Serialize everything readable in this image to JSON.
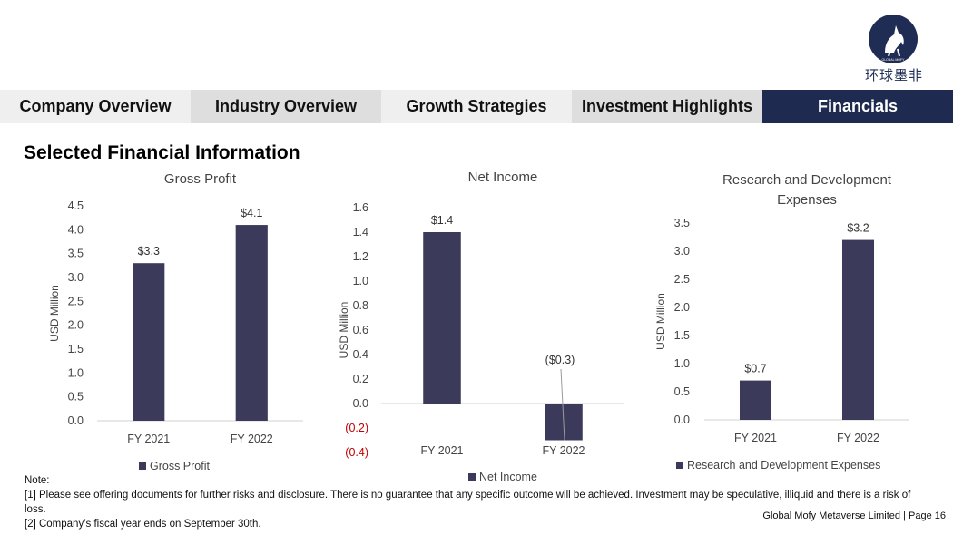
{
  "logo": {
    "chinese_text": "环球墨非",
    "small_text": "GLOBAL MOFY"
  },
  "nav": {
    "tabs": [
      {
        "label": "Company Overview",
        "state": "light"
      },
      {
        "label": "Industry Overview",
        "state": "grey"
      },
      {
        "label": "Growth Strategies",
        "state": "light"
      },
      {
        "label": "Investment Highlights",
        "state": "grey"
      },
      {
        "label": "Financials",
        "state": "active"
      }
    ]
  },
  "section_title": "Selected Financial Information",
  "colors": {
    "bar": "#3b3a5a",
    "navy": "#1e2a4f",
    "negative_tick": "#c00000"
  },
  "chart_data": [
    {
      "type": "bar",
      "title": [
        "Gross Profit"
      ],
      "ylabel": "USD Million",
      "categories": [
        "FY 2021",
        "FY 2022"
      ],
      "series": [
        {
          "name": "Gross Profit",
          "values": [
            3.3,
            4.1
          ]
        }
      ],
      "data_labels": [
        "$3.3",
        "$4.1"
      ],
      "yticks": [
        0.0,
        0.5,
        1.0,
        1.5,
        2.0,
        2.5,
        3.0,
        3.5,
        4.0,
        4.5
      ],
      "ytick_labels": [
        "0.0",
        "0.5",
        "1.0",
        "1.5",
        "2.0",
        "2.5",
        "3.0",
        "3.5",
        "4.0",
        "4.5"
      ],
      "ylim": [
        0,
        4.5
      ],
      "legend": "bottom"
    },
    {
      "type": "bar",
      "title": [
        "Net Income"
      ],
      "ylabel": "USD Million",
      "categories": [
        "FY 2021",
        "FY 2022"
      ],
      "series": [
        {
          "name": "Net Income",
          "values": [
            1.4,
            -0.3
          ]
        }
      ],
      "data_labels": [
        "$1.4",
        "($0.3)"
      ],
      "yticks": [
        -0.4,
        -0.2,
        0.0,
        0.2,
        0.4,
        0.6,
        0.8,
        1.0,
        1.2,
        1.4,
        1.6
      ],
      "ytick_labels": [
        "(0.4)",
        "(0.2)",
        "0.0",
        "0.2",
        "0.4",
        "0.6",
        "0.8",
        "1.0",
        "1.2",
        "1.4",
        "1.6"
      ],
      "ylim": [
        -0.4,
        1.6
      ],
      "legend": "bottom"
    },
    {
      "type": "bar",
      "title": [
        "Research and Development",
        "Expenses"
      ],
      "ylabel": "USD Million",
      "categories": [
        "FY 2021",
        "FY 2022"
      ],
      "series": [
        {
          "name": "Research and Development Expenses",
          "values": [
            0.7,
            3.2
          ]
        }
      ],
      "data_labels": [
        "$0.7",
        "$3.2"
      ],
      "yticks": [
        0.0,
        0.5,
        1.0,
        1.5,
        2.0,
        2.5,
        3.0,
        3.5
      ],
      "ytick_labels": [
        "0.0",
        "0.5",
        "1.0",
        "1.5",
        "2.0",
        "2.5",
        "3.0",
        "3.5"
      ],
      "ylim": [
        0,
        3.5
      ],
      "legend": "bottom"
    }
  ],
  "note": {
    "heading": "Note:",
    "lines": [
      "[1] Please see offering documents for further risks and disclosure. There is no guarantee that any specific outcome will be achieved. Investment may be speculative, illiquid and there is a risk of loss.",
      "[2] Company’s fiscal year ends on September 30th."
    ]
  },
  "footer": "Global Mofy Metaverse Limited | Page 16"
}
